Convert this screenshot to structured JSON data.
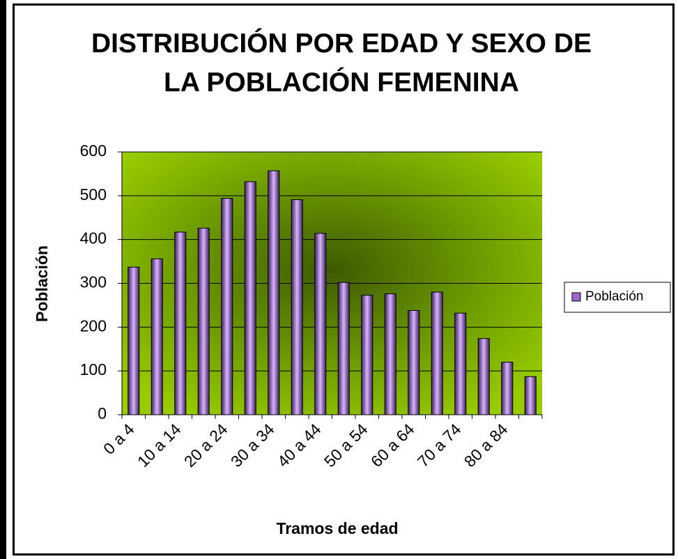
{
  "chart_data": {
    "type": "bar",
    "title": "DISTRIBUCIÓN POR EDAD Y SEXO DE LA POBLACIÓN FEMENINA",
    "x_label": "Tramos de edad",
    "y_label": "Población",
    "categories": [
      "0 a 4",
      null,
      "10 a 14",
      null,
      "20 a 24",
      null,
      "30 a 34",
      null,
      "40 a 44",
      null,
      "50 a 54",
      null,
      "60 a 64",
      null,
      "70 a 74",
      null,
      "80 a 84",
      null
    ],
    "series": [
      {
        "name": "Población",
        "color": "#9966cc",
        "values": [
          337,
          356,
          417,
          426,
          494,
          532,
          557,
          491,
          414,
          302,
          273,
          276,
          238,
          280,
          232,
          174,
          120,
          87
        ]
      }
    ],
    "ylim": [
      0,
      600
    ],
    "yticks": [
      0,
      100,
      200,
      300,
      400,
      500,
      600
    ],
    "grid": true,
    "legend": "right"
  }
}
